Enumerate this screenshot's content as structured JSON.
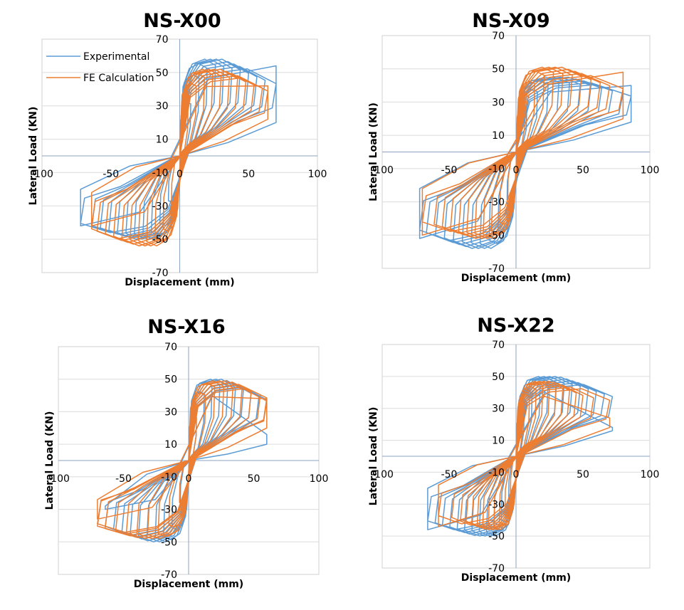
{
  "colors": {
    "experimental": "#5b9bd5",
    "fe": "#ed7d31"
  },
  "legend": {
    "items": [
      "Experimental",
      "FE Calculation"
    ]
  },
  "chart_data": [
    {
      "type": "line",
      "title": "NS-X00",
      "xlabel": "Displacement (mm)",
      "ylabel": "Lateral Load (KN)",
      "xlim": [
        -100,
        100
      ],
      "ylim": [
        -70,
        70
      ],
      "xticks": [
        -100,
        -50,
        0,
        50,
        100
      ],
      "xtick_labels": [
        "-100",
        "-50",
        "0",
        "50",
        "100"
      ],
      "yticks": [
        70,
        50,
        30,
        10,
        -10,
        -30,
        -50,
        -70
      ],
      "ytick_labels": [
        "70",
        "50",
        "30",
        "10",
        "-10",
        "-30",
        "-50",
        "-70"
      ],
      "show_legend": true,
      "legend_position": "top-left",
      "grid": true,
      "series": [
        {
          "name": "Experimental",
          "envelope": {
            "peak_pos": [
              70,
              54
            ],
            "peak_neg": [
              -72,
              -42
            ],
            "tip_pos": [
              70,
              20
            ],
            "tip_neg": [
              -72,
              -20
            ],
            "mid_pos": 58,
            "mid_neg": -50
          },
          "cycle_amplitudes": [
            8,
            14,
            20,
            26,
            32,
            38,
            44,
            50,
            56,
            62,
            70
          ]
        },
        {
          "name": "FE Calculation",
          "envelope": {
            "peak_pos": [
              64,
              42
            ],
            "peak_neg": [
              -64,
              -42
            ],
            "tip_pos": [
              64,
              22
            ],
            "tip_neg": [
              -64,
              -22
            ],
            "mid_pos": 52,
            "mid_neg": -54
          },
          "cycle_amplitudes": [
            6,
            12,
            18,
            24,
            30,
            36,
            42,
            48,
            54,
            60,
            64
          ]
        }
      ]
    },
    {
      "type": "line",
      "title": "NS-X09",
      "xlabel": "Displacement (mm)",
      "ylabel": "Lateral Load (KN)",
      "xlim": [
        -100,
        100
      ],
      "ylim": [
        -70,
        70
      ],
      "xticks": [
        -100,
        -50,
        0,
        50,
        100
      ],
      "xtick_labels": [
        "-100",
        "-50",
        "0",
        "50",
        "100"
      ],
      "yticks": [
        70,
        50,
        30,
        10,
        -10,
        -30,
        -50,
        -70
      ],
      "ytick_labels": [
        "70",
        "50",
        "30",
        "10",
        "-10",
        "-30",
        "-50",
        "-70"
      ],
      "show_legend": false,
      "grid": true,
      "series": [
        {
          "name": "Experimental",
          "envelope": {
            "peak_pos": [
              86,
              40
            ],
            "peak_neg": [
              -72,
              -52
            ],
            "tip_pos": [
              86,
              18
            ],
            "tip_neg": [
              -72,
              -22
            ],
            "mid_pos": 45,
            "mid_neg": -58
          },
          "cycle_amplitudes": [
            8,
            16,
            24,
            32,
            40,
            48,
            56,
            64,
            72,
            80,
            86
          ]
        },
        {
          "name": "FE Calculation",
          "envelope": {
            "peak_pos": [
              80,
              48
            ],
            "peak_neg": [
              -70,
              -50
            ],
            "tip_pos": [
              80,
              20
            ],
            "tip_neg": [
              -70,
              -22
            ],
            "mid_pos": 51,
            "mid_neg": -52
          },
          "cycle_amplitudes": [
            7,
            14,
            21,
            28,
            35,
            42,
            49,
            56,
            63,
            70,
            80
          ]
        }
      ]
    },
    {
      "type": "line",
      "title": "NS-X16",
      "xlabel": "Displacement (mm)",
      "ylabel": "Lateral Load (KN)",
      "xlim": [
        -100,
        100
      ],
      "ylim": [
        -70,
        70
      ],
      "xticks": [
        -100,
        -50,
        0,
        50,
        100
      ],
      "xtick_labels": [
        "-100",
        "-50",
        "0",
        "50",
        "100"
      ],
      "yticks": [
        70,
        50,
        30,
        10,
        -10,
        -30,
        -50,
        -70
      ],
      "ytick_labels": [
        "70",
        "50",
        "30",
        "10",
        "-10",
        "-30",
        "-50",
        "-70"
      ],
      "show_legend": false,
      "grid": true,
      "series": [
        {
          "name": "Experimental",
          "envelope": {
            "peak_pos": [
              60,
              16
            ],
            "peak_neg": [
              -64,
              -30
            ],
            "tip_pos": [
              60,
              10
            ],
            "tip_neg": [
              -64,
              -28
            ],
            "mid_pos": 50,
            "mid_neg": -50
          },
          "cycle_amplitudes": [
            6,
            12,
            18,
            24,
            30,
            36,
            42,
            48,
            54,
            60
          ]
        },
        {
          "name": "FE Calculation",
          "envelope": {
            "peak_pos": [
              60,
              38
            ],
            "peak_neg": [
              -70,
              -36
            ],
            "tip_pos": [
              60,
              20
            ],
            "tip_neg": [
              -70,
              -24
            ],
            "mid_pos": 49,
            "mid_neg": -48
          },
          "cycle_amplitudes": [
            6,
            13,
            20,
            27,
            34,
            41,
            48,
            55,
            60,
            70
          ]
        }
      ]
    },
    {
      "type": "line",
      "title": "NS-X22",
      "xlabel": "Displacement (mm)",
      "ylabel": "Lateral Load (KN)",
      "xlim": [
        -100,
        100
      ],
      "ylim": [
        -70,
        70
      ],
      "xticks": [
        -100,
        -50,
        0,
        50,
        100
      ],
      "xtick_labels": [
        "-100",
        "-50",
        "0",
        "50",
        "100"
      ],
      "yticks": [
        70,
        50,
        30,
        10,
        -10,
        -30,
        -50,
        -70
      ],
      "ytick_labels": [
        "70",
        "50",
        "30",
        "10",
        "-10",
        "-30",
        "-50",
        "-70"
      ],
      "show_legend": false,
      "grid": true,
      "series": [
        {
          "name": "Experimental",
          "envelope": {
            "peak_pos": [
              72,
              18
            ],
            "peak_neg": [
              -66,
              -46
            ],
            "tip_pos": [
              72,
              16
            ],
            "tip_neg": [
              -66,
              -20
            ],
            "mid_pos": 50,
            "mid_neg": -50
          },
          "cycle_amplitudes": [
            6,
            12,
            18,
            24,
            30,
            36,
            42,
            48,
            54,
            60,
            66,
            72
          ]
        },
        {
          "name": "FE Calculation",
          "envelope": {
            "peak_pos": [
              70,
              24
            ],
            "peak_neg": [
              -58,
              -44
            ],
            "tip_pos": [
              70,
              18
            ],
            "tip_neg": [
              -58,
              -18
            ],
            "mid_pos": 47,
            "mid_neg": -46
          },
          "cycle_amplitudes": [
            5,
            10,
            15,
            20,
            25,
            30,
            35,
            40,
            45,
            50,
            58,
            70
          ]
        }
      ]
    }
  ]
}
